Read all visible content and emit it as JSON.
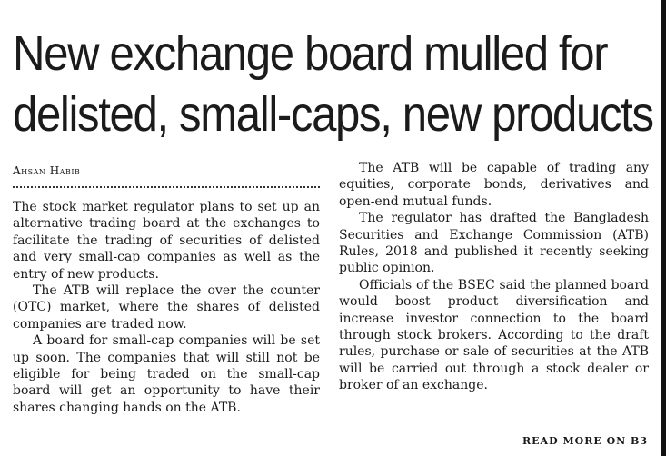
{
  "article": {
    "headline_line1": "New exchange board mulled for",
    "headline_line2": "delisted, small-caps, new products",
    "byline": "Ahsan Habib",
    "left_column": [
      "The stock market regulator plans to set up an alternative trading board at the exchanges to facilitate the trading of securities of delisted and very small-cap companies as well as the entry of new products.",
      "The ATB will replace the over the counter (OTC) market, where the shares of delisted companies are traded now.",
      "A board for small-cap companies will be set up soon. The companies that will still not be eligible for being traded on the small-cap board will get an opportunity to have their shares changing hands on the ATB."
    ],
    "right_column": [
      "The ATB will be capable of trading any equities, corporate bonds, derivatives and open-end mutual funds.",
      "The regulator has drafted the Bangladesh Securities and Exchange Commission (ATB) Rules, 2018 and published it recently seeking public opinion.",
      "Officials of the BSEC said the planned board would boost product diversification and increase investor connection to the board through stock brokers. According to the draft rules, purchase or sale of securities at the ATB will be carried out through a stock dealer or broker of an exchange."
    ],
    "read_more": "READ MORE ON B3"
  }
}
